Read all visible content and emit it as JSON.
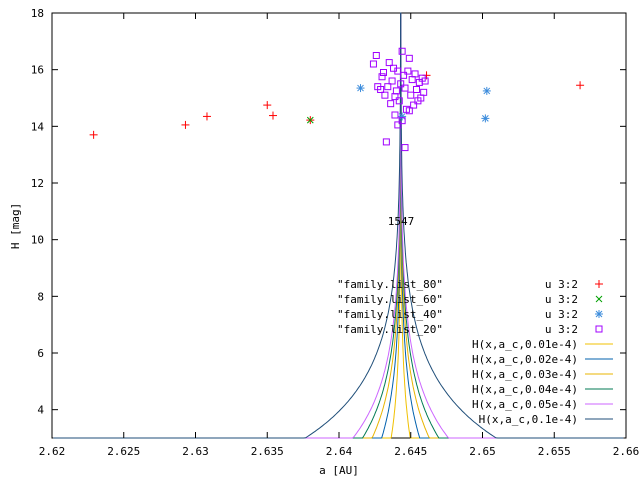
{
  "chart_data": {
    "type": "scatter",
    "xlabel": "a [AU]",
    "ylabel": "H [mag]",
    "xlim": [
      2.62,
      2.66
    ],
    "ylim": [
      3,
      18
    ],
    "x_ticks": [
      2.62,
      2.625,
      2.63,
      2.635,
      2.64,
      2.645,
      2.65,
      2.655,
      2.66
    ],
    "x_tick_labels": [
      "2.62",
      "2.625",
      "2.63",
      "2.635",
      "2.64",
      "2.645",
      "2.65",
      "2.655",
      "2.66"
    ],
    "y_ticks": [
      4,
      6,
      8,
      10,
      12,
      14,
      16,
      18
    ],
    "y_tick_labels": [
      "4",
      "6",
      "8",
      "10",
      "12",
      "14",
      "16",
      "18"
    ],
    "grid": false,
    "legend_placement": "bottom-right",
    "annotation": {
      "text": "1547",
      "x": 2.6445,
      "y": 10.6
    },
    "a_c": 2.6443,
    "scatter_series": [
      {
        "label_left": "\"family.list_80\"",
        "label_right": "u 3:2",
        "marker": "plus",
        "color": "#ff0000",
        "points": [
          [
            2.6229,
            13.7
          ],
          [
            2.6293,
            14.05
          ],
          [
            2.6308,
            14.35
          ],
          [
            2.635,
            14.75
          ],
          [
            2.6354,
            14.38
          ],
          [
            2.638,
            14.22
          ],
          [
            2.6461,
            15.8
          ],
          [
            2.6568,
            15.45
          ]
        ]
      },
      {
        "label_left": "\"family.list_60\"",
        "label_right": "u 3:2",
        "marker": "cross",
        "color": "#00a000",
        "points": [
          [
            2.638,
            14.22
          ]
        ]
      },
      {
        "label_left": "\"family.list_40\"",
        "label_right": "u 3:2",
        "marker": "star",
        "color": "#3c8cdc",
        "points": [
          [
            2.6415,
            15.35
          ],
          [
            2.6503,
            15.25
          ],
          [
            2.6502,
            14.28
          ],
          [
            2.6444,
            14.35
          ]
        ]
      },
      {
        "label_left": "\"family.list_20\"",
        "label_right": "u 3:2",
        "marker": "square",
        "color": "#a000ff",
        "points": [
          [
            2.6424,
            16.2
          ],
          [
            2.6426,
            16.5
          ],
          [
            2.6427,
            15.4
          ],
          [
            2.643,
            15.75
          ],
          [
            2.6432,
            15.1
          ],
          [
            2.6434,
            15.4
          ],
          [
            2.6436,
            14.8
          ],
          [
            2.6437,
            15.6
          ],
          [
            2.6438,
            16.05
          ],
          [
            2.6439,
            14.4
          ],
          [
            2.644,
            15.25
          ],
          [
            2.6441,
            15.95
          ],
          [
            2.6442,
            14.9
          ],
          [
            2.6443,
            15.5
          ],
          [
            2.6444,
            14.2
          ],
          [
            2.6445,
            15.8
          ],
          [
            2.6446,
            15.35
          ],
          [
            2.6447,
            14.6
          ],
          [
            2.6448,
            15.95
          ],
          [
            2.6449,
            16.4
          ],
          [
            2.645,
            15.1
          ],
          [
            2.6451,
            15.65
          ],
          [
            2.6452,
            14.75
          ],
          [
            2.6453,
            15.85
          ],
          [
            2.6454,
            15.3
          ],
          [
            2.6455,
            14.9
          ],
          [
            2.6456,
            15.55
          ],
          [
            2.6457,
            15.0
          ],
          [
            2.6458,
            15.7
          ],
          [
            2.6459,
            15.2
          ],
          [
            2.646,
            15.6
          ],
          [
            2.6435,
            16.25
          ],
          [
            2.6431,
            15.9
          ],
          [
            2.6429,
            15.3
          ],
          [
            2.6433,
            13.45
          ],
          [
            2.6446,
            13.25
          ],
          [
            2.6441,
            14.05
          ],
          [
            2.6449,
            14.55
          ],
          [
            2.6444,
            16.65
          ],
          [
            2.6439,
            15.05
          ]
        ]
      }
    ],
    "curve_series": [
      {
        "label": "H(x,a_c,0.01e-4)",
        "color": "#f0c000",
        "C": 0.01
      },
      {
        "label": "H(x,a_c,0.02e-4)",
        "color": "#0060ad",
        "C": 0.02
      },
      {
        "label": "H(x,a_c,0.03e-4)",
        "color": "#e8b400",
        "C": 0.03
      },
      {
        "label": "H(x,a_c,0.04e-4)",
        "color": "#007a53",
        "C": 0.04
      },
      {
        "label": "H(x,a_c,0.05e-4)",
        "color": "#cc66ff",
        "C": 0.05
      },
      {
        "label": "H(x,a_c,0.1e-4)",
        "color": "#1f4e79",
        "C": 0.1
      }
    ]
  }
}
